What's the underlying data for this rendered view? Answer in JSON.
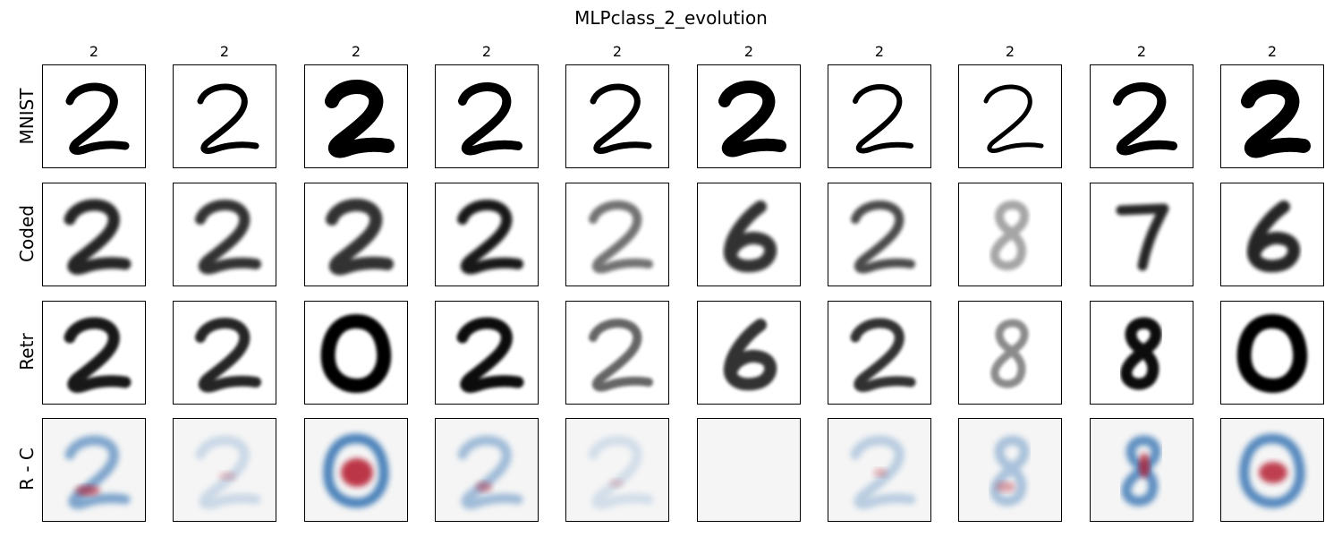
{
  "title": "MLPclass_2_evolution",
  "column_labels": [
    "2",
    "2",
    "2",
    "2",
    "2",
    "2",
    "2",
    "2",
    "2",
    "2"
  ],
  "row_labels": [
    "MNIST",
    "Coded",
    "Retr",
    "R - C"
  ],
  "colors": {
    "ink": "#000000",
    "diff_background": "#f5f5f5",
    "diff_positive": "#b2182b",
    "diff_negative": "#2166ac"
  },
  "panels": {
    "MNIST": [
      "digit-2",
      "digit-2",
      "digit-2",
      "digit-2",
      "digit-2",
      "digit-2",
      "digit-2",
      "digit-2",
      "digit-2",
      "digit-2"
    ],
    "Coded": [
      "digit-2",
      "digit-2",
      "digit-2",
      "digit-2",
      "digit-2",
      "digit-6",
      "digit-2",
      "digit-8",
      "digit-7",
      "digit-6"
    ],
    "Retr": [
      "digit-2",
      "digit-2",
      "digit-0",
      "digit-2",
      "digit-2",
      "digit-6",
      "digit-2",
      "digit-8",
      "digit-8",
      "digit-0"
    ],
    "R - C": [
      "diff-map",
      "diff-map",
      "diff-map",
      "diff-map",
      "diff-map",
      "diff-blank",
      "diff-map",
      "diff-map",
      "diff-map",
      "diff-map"
    ]
  }
}
